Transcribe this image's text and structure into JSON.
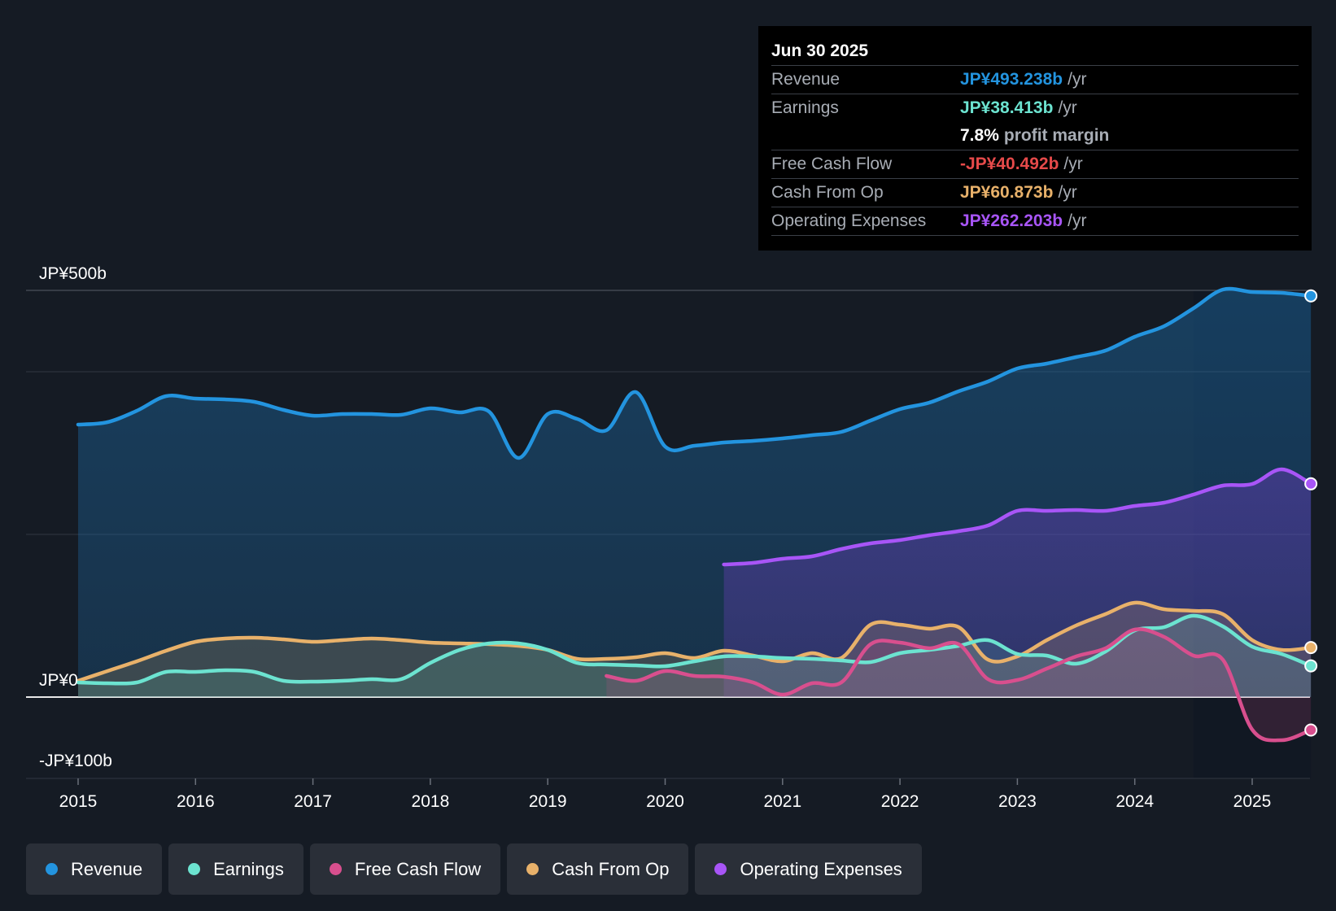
{
  "tooltip": {
    "date": "Jun 30 2025",
    "rows": [
      {
        "label": "Revenue",
        "value": "JP¥493.238b",
        "unit": "/yr",
        "color": "#2394df"
      },
      {
        "label": "Earnings",
        "value": "JP¥38.413b",
        "unit": "/yr",
        "color": "#6ce3d0"
      },
      {
        "label": "",
        "value": "7.8%",
        "unit": "profit margin",
        "color": "#ffffff"
      },
      {
        "label": "Free Cash Flow",
        "value": "-JP¥40.492b",
        "unit": "/yr",
        "color": "#e64a4a"
      },
      {
        "label": "Cash From Op",
        "value": "JP¥60.873b",
        "unit": "/yr",
        "color": "#e8b16a"
      },
      {
        "label": "Operating Expenses",
        "value": "JP¥262.203b",
        "unit": "/yr",
        "color": "#a855f7"
      }
    ]
  },
  "legend": [
    {
      "label": "Revenue",
      "color": "#2394df"
    },
    {
      "label": "Earnings",
      "color": "#6ce3d0"
    },
    {
      "label": "Free Cash Flow",
      "color": "#d84f8e"
    },
    {
      "label": "Cash From Op",
      "color": "#e8b16a"
    },
    {
      "label": "Operating Expenses",
      "color": "#a855f7"
    }
  ],
  "chart_data": {
    "type": "area",
    "title": "",
    "xlabel": "",
    "ylabel": "",
    "unit": "JP¥ billions",
    "xlim": [
      2014.55,
      2025.5
    ],
    "ylim": [
      -100,
      500
    ],
    "ytick_labels": [
      {
        "value": 500,
        "label": "JP¥500b"
      },
      {
        "value": 0,
        "label": "JP¥0"
      },
      {
        "value": -100,
        "label": "-JP¥100b"
      }
    ],
    "gridlines": [
      500,
      400,
      200,
      0,
      -100
    ],
    "xticks": [
      2015,
      2016,
      2017,
      2018,
      2019,
      2020,
      2021,
      2022,
      2023,
      2024,
      2025
    ],
    "xtick_labels": [
      "2015",
      "2016",
      "2017",
      "2018",
      "2019",
      "2020",
      "2021",
      "2022",
      "2023",
      "2024",
      "2025"
    ],
    "forecast_start": 2024.5,
    "series": [
      {
        "name": "Revenue",
        "color": "#2394df",
        "points": [
          [
            2015.0,
            335
          ],
          [
            2015.25,
            338
          ],
          [
            2015.5,
            352
          ],
          [
            2015.75,
            370
          ],
          [
            2016.0,
            367
          ],
          [
            2016.25,
            366
          ],
          [
            2016.5,
            363
          ],
          [
            2016.75,
            353
          ],
          [
            2017.0,
            346
          ],
          [
            2017.25,
            348
          ],
          [
            2017.5,
            348
          ],
          [
            2017.75,
            347
          ],
          [
            2018.0,
            355
          ],
          [
            2018.25,
            350
          ],
          [
            2018.5,
            351
          ],
          [
            2018.75,
            294
          ],
          [
            2019.0,
            348
          ],
          [
            2019.25,
            342
          ],
          [
            2019.5,
            328
          ],
          [
            2019.75,
            375
          ],
          [
            2020.0,
            308
          ],
          [
            2020.25,
            309
          ],
          [
            2020.5,
            313
          ],
          [
            2020.75,
            315
          ],
          [
            2021.0,
            318
          ],
          [
            2021.25,
            322
          ],
          [
            2021.5,
            326
          ],
          [
            2021.75,
            340
          ],
          [
            2022.0,
            354
          ],
          [
            2022.25,
            362
          ],
          [
            2022.5,
            376
          ],
          [
            2022.75,
            388
          ],
          [
            2023.0,
            404
          ],
          [
            2023.25,
            410
          ],
          [
            2023.5,
            418
          ],
          [
            2023.75,
            426
          ],
          [
            2024.0,
            443
          ],
          [
            2024.25,
            456
          ],
          [
            2024.5,
            478
          ],
          [
            2024.75,
            501
          ],
          [
            2025.0,
            498
          ],
          [
            2025.25,
            497
          ],
          [
            2025.5,
            493.238
          ]
        ]
      },
      {
        "name": "Operating Expenses",
        "color": "#a855f7",
        "points": [
          [
            2020.5,
            163
          ],
          [
            2020.75,
            165
          ],
          [
            2021.0,
            170
          ],
          [
            2021.25,
            173
          ],
          [
            2021.5,
            182
          ],
          [
            2021.75,
            189
          ],
          [
            2022.0,
            193
          ],
          [
            2022.25,
            199
          ],
          [
            2022.5,
            204
          ],
          [
            2022.75,
            211
          ],
          [
            2023.0,
            229
          ],
          [
            2023.25,
            229
          ],
          [
            2023.5,
            230
          ],
          [
            2023.75,
            229
          ],
          [
            2024.0,
            235
          ],
          [
            2024.25,
            239
          ],
          [
            2024.5,
            249
          ],
          [
            2024.75,
            260
          ],
          [
            2025.0,
            262
          ],
          [
            2025.25,
            280
          ],
          [
            2025.5,
            262.203
          ]
        ]
      },
      {
        "name": "Cash From Op",
        "color": "#e8b16a",
        "points": [
          [
            2015.0,
            20
          ],
          [
            2015.25,
            32
          ],
          [
            2015.5,
            44
          ],
          [
            2015.75,
            57
          ],
          [
            2016.0,
            68
          ],
          [
            2016.25,
            72
          ],
          [
            2016.5,
            73
          ],
          [
            2016.75,
            71
          ],
          [
            2017.0,
            68
          ],
          [
            2017.25,
            70
          ],
          [
            2017.5,
            72
          ],
          [
            2017.75,
            70
          ],
          [
            2018.0,
            67
          ],
          [
            2018.25,
            66
          ],
          [
            2018.5,
            65
          ],
          [
            2018.75,
            63
          ],
          [
            2019.0,
            58
          ],
          [
            2019.25,
            47
          ],
          [
            2019.5,
            47
          ],
          [
            2019.75,
            49
          ],
          [
            2020.0,
            54
          ],
          [
            2020.25,
            48
          ],
          [
            2020.5,
            57
          ],
          [
            2020.75,
            51
          ],
          [
            2021.0,
            44
          ],
          [
            2021.25,
            54
          ],
          [
            2021.5,
            48
          ],
          [
            2021.75,
            89
          ],
          [
            2022.0,
            89
          ],
          [
            2022.25,
            84
          ],
          [
            2022.5,
            86
          ],
          [
            2022.75,
            46
          ],
          [
            2023.0,
            50
          ],
          [
            2023.25,
            70
          ],
          [
            2023.5,
            88
          ],
          [
            2023.75,
            102
          ],
          [
            2024.0,
            116
          ],
          [
            2024.25,
            108
          ],
          [
            2024.5,
            106
          ],
          [
            2024.75,
            102
          ],
          [
            2025.0,
            70
          ],
          [
            2025.25,
            58
          ],
          [
            2025.5,
            60.873
          ]
        ]
      },
      {
        "name": "Earnings",
        "color": "#6ce3d0",
        "points": [
          [
            2015.0,
            18
          ],
          [
            2015.25,
            17
          ],
          [
            2015.5,
            18
          ],
          [
            2015.75,
            31
          ],
          [
            2016.0,
            31
          ],
          [
            2016.25,
            33
          ],
          [
            2016.5,
            31
          ],
          [
            2016.75,
            20
          ],
          [
            2017.0,
            19
          ],
          [
            2017.25,
            20
          ],
          [
            2017.5,
            22
          ],
          [
            2017.75,
            22
          ],
          [
            2018.0,
            42
          ],
          [
            2018.25,
            58
          ],
          [
            2018.5,
            66
          ],
          [
            2018.75,
            66
          ],
          [
            2019.0,
            58
          ],
          [
            2019.25,
            42
          ],
          [
            2019.5,
            40
          ],
          [
            2019.75,
            39
          ],
          [
            2020.0,
            38
          ],
          [
            2020.25,
            44
          ],
          [
            2020.5,
            50
          ],
          [
            2020.75,
            50
          ],
          [
            2021.0,
            48
          ],
          [
            2021.25,
            47
          ],
          [
            2021.5,
            45
          ],
          [
            2021.75,
            43
          ],
          [
            2022.0,
            54
          ],
          [
            2022.25,
            58
          ],
          [
            2022.5,
            63
          ],
          [
            2022.75,
            70
          ],
          [
            2023.0,
            53
          ],
          [
            2023.25,
            51
          ],
          [
            2023.5,
            41
          ],
          [
            2023.75,
            56
          ],
          [
            2024.0,
            82
          ],
          [
            2024.25,
            86
          ],
          [
            2024.5,
            100
          ],
          [
            2024.75,
            87
          ],
          [
            2025.0,
            62
          ],
          [
            2025.25,
            53
          ],
          [
            2025.5,
            38.413
          ]
        ]
      },
      {
        "name": "Free Cash Flow",
        "color": "#d84f8e",
        "points": [
          [
            2019.5,
            26
          ],
          [
            2019.75,
            20
          ],
          [
            2020.0,
            32
          ],
          [
            2020.25,
            26
          ],
          [
            2020.5,
            25
          ],
          [
            2020.75,
            18
          ],
          [
            2021.0,
            3
          ],
          [
            2021.25,
            17
          ],
          [
            2021.5,
            18
          ],
          [
            2021.75,
            65
          ],
          [
            2022.0,
            67
          ],
          [
            2022.25,
            60
          ],
          [
            2022.5,
            65
          ],
          [
            2022.75,
            22
          ],
          [
            2023.0,
            21
          ],
          [
            2023.25,
            35
          ],
          [
            2023.5,
            50
          ],
          [
            2023.75,
            60
          ],
          [
            2024.0,
            83
          ],
          [
            2024.25,
            74
          ],
          [
            2024.5,
            51
          ],
          [
            2024.75,
            46
          ],
          [
            2025.0,
            -40
          ],
          [
            2025.25,
            -53
          ],
          [
            2025.5,
            -40.492
          ]
        ]
      }
    ]
  }
}
